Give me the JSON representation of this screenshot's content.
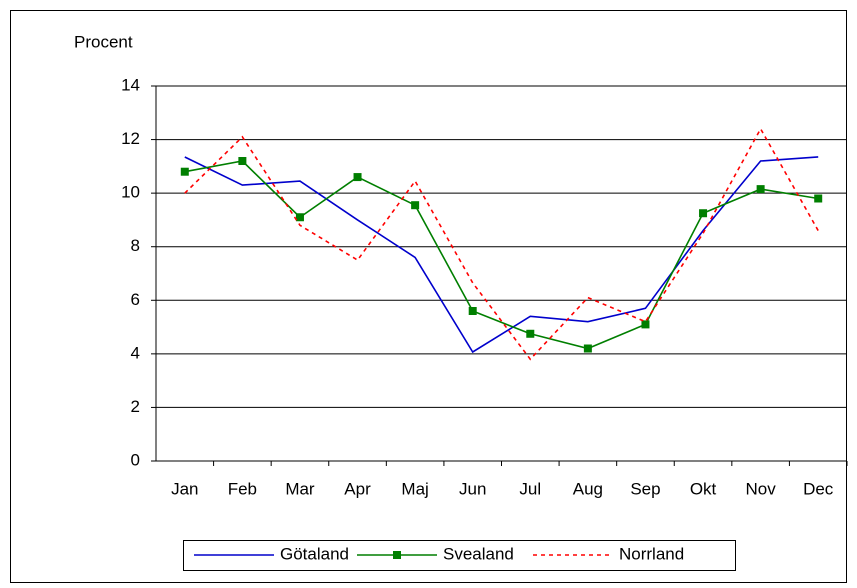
{
  "chart_data": {
    "type": "line",
    "y_label": "Procent",
    "categories": [
      "Jan",
      "Feb",
      "Mar",
      "Apr",
      "Maj",
      "Jun",
      "Jul",
      "Aug",
      "Sep",
      "Okt",
      "Nov",
      "Dec"
    ],
    "series": [
      {
        "name": "Götaland",
        "color": "#0000cc",
        "style": "solid",
        "marker": "none",
        "values": [
          11.35,
          10.3,
          10.45,
          9.0,
          7.6,
          4.07,
          5.4,
          5.2,
          5.7,
          8.6,
          11.2,
          11.35
        ]
      },
      {
        "name": "Svealand",
        "color": "#007f00",
        "style": "solid",
        "marker": "square",
        "values": [
          10.8,
          11.2,
          9.1,
          10.6,
          9.55,
          5.6,
          4.75,
          4.2,
          5.1,
          9.25,
          10.15,
          9.8
        ]
      },
      {
        "name": "Norrland",
        "color": "#ff0000",
        "style": "dashed",
        "marker": "none",
        "values": [
          10.0,
          12.1,
          8.8,
          7.5,
          10.45,
          6.65,
          3.8,
          6.1,
          5.2,
          8.5,
          12.4,
          8.6
        ]
      }
    ],
    "ylim": [
      0,
      14
    ],
    "yticks": [
      0,
      2,
      4,
      6,
      8,
      10,
      12,
      14
    ],
    "grid": true,
    "legend": "bottom"
  }
}
